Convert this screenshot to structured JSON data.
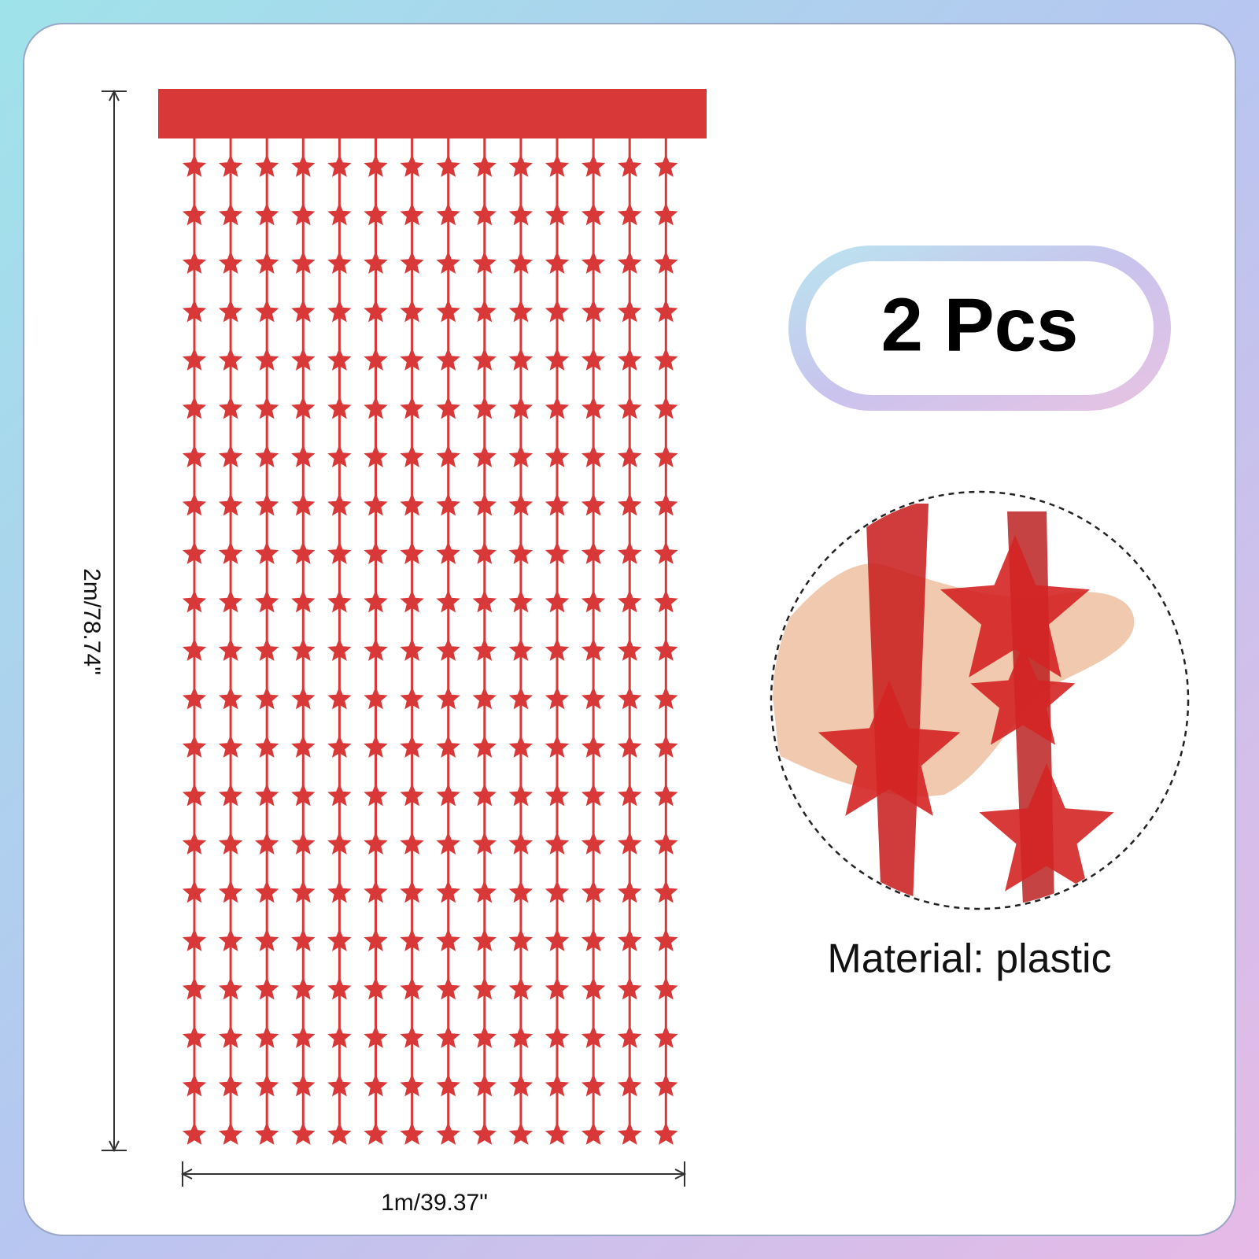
{
  "dimensions": {
    "height": "2m/78.74\"",
    "width": "1m/39.37\""
  },
  "badge": {
    "text": "2 Pcs"
  },
  "material": {
    "text": "Material: plastic"
  }
}
